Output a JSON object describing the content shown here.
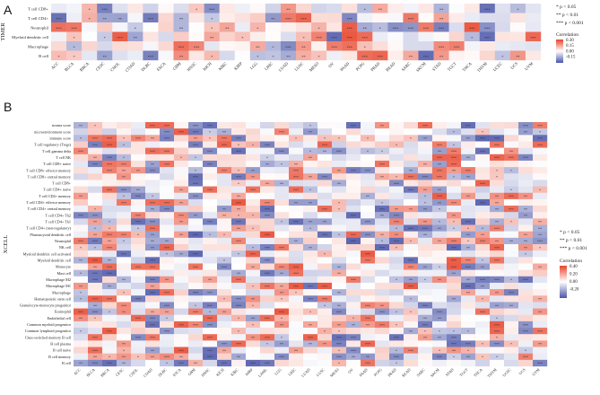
{
  "figure": {
    "panel_a_letter": "A",
    "panel_b_letter": "B"
  },
  "chart_data": [
    {
      "type": "heatmap",
      "panel": "A",
      "group_label": "TIMER",
      "rows": [
        "T cell CD8+",
        "T cell CD4+",
        "Neutrophil",
        "Myeloid dendritic cell",
        "Macrophage",
        "B cell"
      ],
      "columns": [
        "ACC",
        "BLCA",
        "BRCA",
        "CESC",
        "CHOL",
        "COAD",
        "DLBC",
        "ESCA",
        "GBM",
        "HNSC",
        "KICH",
        "KIRC",
        "KIRP",
        "LGG",
        "LIHC",
        "LUAD",
        "LUSC",
        "MESO",
        "OV",
        "PAAD",
        "PCPG",
        "PRAD",
        "READ",
        "SARC",
        "SKCM",
        "STAD",
        "TGCT",
        "THCA",
        "THYM",
        "UCEC",
        "UCS",
        "UVM"
      ],
      "legend": {
        "title": "Correlation",
        "ticks": [
          0.3,
          0.15,
          0,
          -0.15
        ],
        "colors": {
          "high": "#e8452c",
          "mid": "#ffffff",
          "low": "#4a55a8"
        }
      },
      "significance_legend": [
        "* p < 0.05",
        "** p < 0.01",
        "*** p < 0.001"
      ]
    },
    {
      "type": "heatmap",
      "panel": "B",
      "group_label": "XCELL",
      "rows": [
        "stroma score",
        "microenvironment score",
        "immune score",
        "T cell regulatory (Tregs)",
        "T cell gamma delta",
        "T cell NK",
        "T cell CD8+ naive",
        "T cell CD8+ effector memory",
        "T cell CD8+ central memory",
        "T cell CD8+",
        "T cell CD4+ naive",
        "T cell CD4+ memory",
        "T cell CD4+ effector memory",
        "T cell CD4+ central memory",
        "T cell CD4+ Th2",
        "T cell CD4+ Th1",
        "T cell CD4+ (non-regulatory)",
        "Plasmacytoid dendritic cell",
        "Neutrophil",
        "NK cell",
        "Myeloid dendritic cell activated",
        "Myeloid dendritic cell",
        "Monocyte",
        "Mast cell",
        "Macrophage M2",
        "Macrophage M1",
        "Macrophage",
        "Hematopoietic stem cell",
        "Granulocyte-monocyte progenitor",
        "Eosinophil",
        "Endothelial cell",
        "Common myeloid progenitor",
        "Common lymphoid progenitor",
        "Class-switched memory B cell",
        "B cell plasma",
        "B cell naive",
        "B cell memory",
        "B cell"
      ],
      "columns": [
        "ACC",
        "BLCA",
        "BRCA",
        "CESC",
        "CHOL",
        "COAD",
        "DLBC",
        "ESCA",
        "GBM",
        "HNSC",
        "KICH",
        "KIRC",
        "KIRP",
        "LAML",
        "LGG",
        "LIHC",
        "LUAD",
        "LUSC",
        "MESO",
        "OV",
        "PAAD",
        "PCPG",
        "PRAD",
        "READ",
        "SARC",
        "SKCM",
        "STAD",
        "TGCT",
        "THCA",
        "THYM",
        "UCEC",
        "UCS",
        "UVM"
      ],
      "legend": {
        "title": "Correlation",
        "ticks": [
          0.4,
          0.2,
          0,
          -0.2
        ],
        "colors": {
          "high": "#e8452c",
          "mid": "#ffffff",
          "low": "#4a55a8"
        }
      },
      "significance_legend": [
        "* p < 0.05",
        "** p < 0.01",
        "*** p < 0.001"
      ]
    }
  ]
}
